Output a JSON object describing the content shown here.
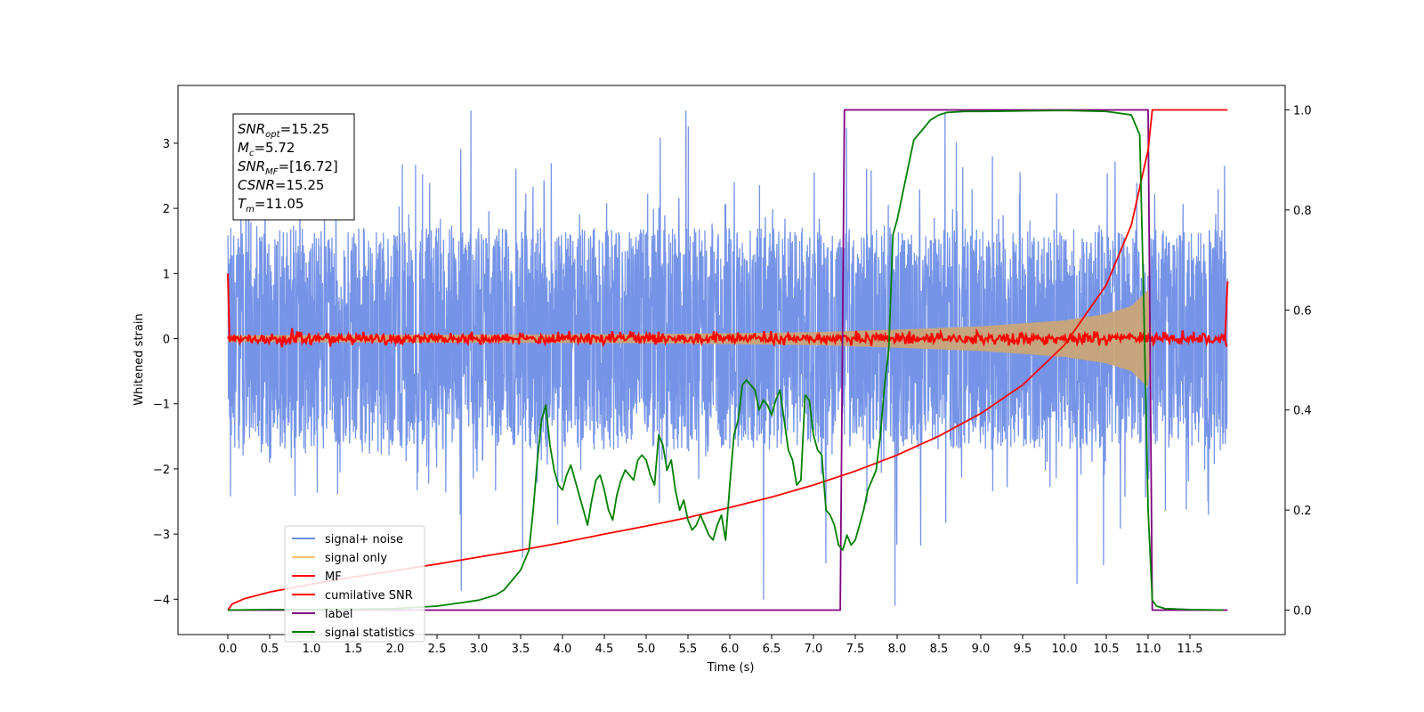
{
  "chart_data": {
    "type": "line",
    "xlabel": "Time (s)",
    "ylabel": "Whitened strain",
    "xlim": [
      -0.6,
      12.6
    ],
    "ylim": [
      -4.5,
      3.83
    ],
    "ylim_right": [
      -0.05,
      1.05
    ],
    "x_ticks": [
      "0.0",
      "0.5",
      "1.0",
      "1.5",
      "2.0",
      "2.5",
      "3.0",
      "3.5",
      "4.0",
      "4.5",
      "5.0",
      "5.5",
      "6.0",
      "6.5",
      "7.0",
      "7.5",
      "8.0",
      "8.5",
      "9.0",
      "9.5",
      "10.0",
      "10.5",
      "11.0",
      "11.5"
    ],
    "y_ticks": [
      "−4",
      "−3",
      "−2",
      "−1",
      "0",
      "1",
      "2",
      "3"
    ],
    "y_ticks_right": [
      "0.0",
      "0.2",
      "0.4",
      "0.6",
      "0.8",
      "1.0"
    ],
    "grid": false,
    "legend_position": "bottom-left",
    "legend": [
      {
        "label": "signal+ noise",
        "color": "#6f8ee6"
      },
      {
        "label": "signal only",
        "color": "#f2c46d"
      },
      {
        "label": "MF",
        "color": "#ff0000"
      },
      {
        "label": "cumilative SNR",
        "color": "#ff0000"
      },
      {
        "label": "label",
        "color": "#800080"
      },
      {
        "label": "signal statistics",
        "color": "#008000"
      }
    ],
    "annotations": [
      {
        "var": "SNR",
        "sub": "opt",
        "val": "=15.25"
      },
      {
        "var": "M",
        "sub": "c",
        "val": "=5.72"
      },
      {
        "var": "SNR",
        "sub": "MF",
        "val": "=[16.72]"
      },
      {
        "var": "CSNR",
        "sub": "",
        "val": "=15.25"
      },
      {
        "var": "T",
        "sub": "m",
        "val": "=11.05"
      }
    ],
    "series": [
      {
        "name": "label",
        "axis": "right",
        "color": "#800080",
        "x": [
          0.0,
          7.32,
          7.37,
          11.0,
          11.05,
          11.95
        ],
        "y": [
          0.0,
          0.0,
          1.0,
          1.0,
          0.0,
          0.0
        ]
      },
      {
        "name": "cumilative SNR",
        "axis": "right",
        "color": "#ff0000",
        "x": [
          0.0,
          0.05,
          0.2,
          0.5,
          1.0,
          1.5,
          2.0,
          2.5,
          3.0,
          3.5,
          4.0,
          4.5,
          5.0,
          5.5,
          6.0,
          6.5,
          7.0,
          7.5,
          8.0,
          8.5,
          9.0,
          9.5,
          10.0,
          10.5,
          10.8,
          11.0,
          11.05,
          11.95
        ],
        "y": [
          0.0,
          0.012,
          0.023,
          0.036,
          0.052,
          0.066,
          0.079,
          0.092,
          0.106,
          0.12,
          0.135,
          0.152,
          0.168,
          0.185,
          0.205,
          0.226,
          0.25,
          0.278,
          0.31,
          0.348,
          0.393,
          0.45,
          0.53,
          0.65,
          0.77,
          0.92,
          1.0,
          1.0
        ]
      },
      {
        "name": "signal statistics",
        "axis": "right",
        "color": "#008000",
        "x": [
          0.0,
          0.5,
          1.0,
          1.5,
          2.0,
          2.5,
          2.8,
          3.0,
          3.2,
          3.3,
          3.4,
          3.5,
          3.55,
          3.6,
          3.65,
          3.7,
          3.75,
          3.8,
          3.85,
          3.9,
          3.95,
          4.0,
          4.05,
          4.1,
          4.15,
          4.2,
          4.25,
          4.3,
          4.35,
          4.4,
          4.45,
          4.5,
          4.55,
          4.6,
          4.65,
          4.7,
          4.75,
          4.8,
          4.85,
          4.9,
          4.95,
          5.0,
          5.05,
          5.1,
          5.15,
          5.2,
          5.25,
          5.3,
          5.35,
          5.4,
          5.45,
          5.5,
          5.55,
          5.6,
          5.65,
          5.7,
          5.75,
          5.8,
          5.85,
          5.9,
          5.95,
          6.0,
          6.05,
          6.1,
          6.15,
          6.2,
          6.25,
          6.3,
          6.35,
          6.4,
          6.45,
          6.5,
          6.55,
          6.6,
          6.65,
          6.7,
          6.75,
          6.8,
          6.85,
          6.9,
          6.95,
          7.0,
          7.05,
          7.1,
          7.15,
          7.2,
          7.25,
          7.3,
          7.35,
          7.4,
          7.45,
          7.5,
          7.55,
          7.6,
          7.65,
          7.7,
          7.75,
          7.8,
          7.85,
          7.9,
          7.95,
          8.0,
          8.05,
          8.1,
          8.15,
          8.2,
          8.3,
          8.4,
          8.5,
          8.6,
          8.8,
          9.0,
          9.5,
          10.0,
          10.5,
          10.8,
          10.9,
          10.95,
          11.0,
          11.05,
          11.1,
          11.2,
          11.5,
          11.9
        ],
        "y": [
          0.0,
          0.001,
          0.001,
          0.002,
          0.003,
          0.008,
          0.015,
          0.02,
          0.03,
          0.04,
          0.06,
          0.08,
          0.1,
          0.12,
          0.2,
          0.3,
          0.38,
          0.41,
          0.33,
          0.28,
          0.25,
          0.24,
          0.27,
          0.29,
          0.26,
          0.23,
          0.2,
          0.17,
          0.22,
          0.26,
          0.27,
          0.24,
          0.2,
          0.18,
          0.23,
          0.26,
          0.28,
          0.27,
          0.26,
          0.3,
          0.31,
          0.3,
          0.27,
          0.25,
          0.35,
          0.33,
          0.28,
          0.3,
          0.24,
          0.2,
          0.22,
          0.18,
          0.16,
          0.17,
          0.19,
          0.17,
          0.15,
          0.14,
          0.17,
          0.19,
          0.14,
          0.25,
          0.35,
          0.38,
          0.45,
          0.46,
          0.45,
          0.44,
          0.4,
          0.42,
          0.41,
          0.39,
          0.42,
          0.44,
          0.38,
          0.32,
          0.3,
          0.25,
          0.26,
          0.43,
          0.42,
          0.35,
          0.32,
          0.31,
          0.2,
          0.19,
          0.17,
          0.13,
          0.12,
          0.15,
          0.13,
          0.14,
          0.17,
          0.2,
          0.24,
          0.26,
          0.28,
          0.35,
          0.45,
          0.52,
          0.75,
          0.78,
          0.82,
          0.86,
          0.9,
          0.94,
          0.96,
          0.98,
          0.99,
          0.995,
          0.997,
          0.997,
          0.998,
          0.999,
          0.997,
          0.99,
          0.95,
          0.6,
          0.2,
          0.02,
          0.008,
          0.003,
          0.001,
          0.0
        ]
      }
    ],
    "noise_band": {
      "name": "signal+ noise",
      "color": "#6f8ee6",
      "x_range": [
        0.0,
        11.95
      ],
      "typical_amplitude": 2.5,
      "peak_range": [
        -4.1,
        3.5
      ]
    },
    "signal_envelope": {
      "name": "signal only",
      "color": "#c9a478",
      "x": [
        0.0,
        5.0,
        7.0,
        8.0,
        9.0,
        10.0,
        10.5,
        10.8,
        11.0,
        11.05
      ],
      "amp": [
        0.05,
        0.07,
        0.1,
        0.14,
        0.19,
        0.28,
        0.38,
        0.5,
        0.75,
        0.0
      ]
    },
    "mf_band": {
      "name": "MF",
      "color": "#ff0000",
      "x_range": [
        0.0,
        11.95
      ],
      "amplitude": 0.12
    }
  }
}
